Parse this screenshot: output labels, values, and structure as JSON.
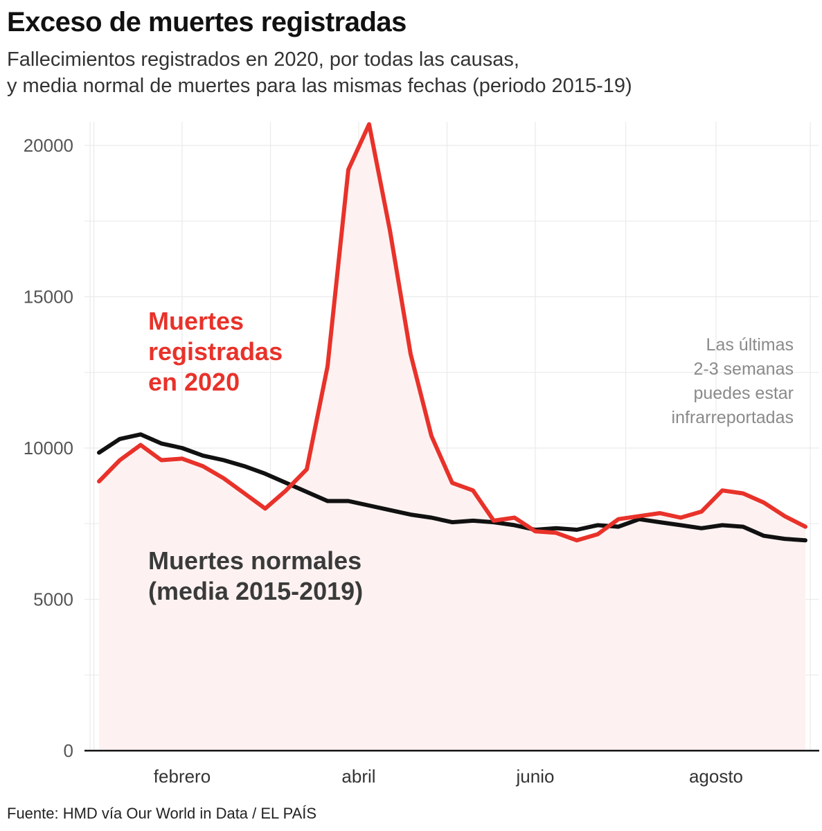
{
  "chart_data": {
    "type": "line",
    "title": "Exceso de muertes registradas",
    "subtitle": [
      "Fallecimientos registrados en 2020, por todas las causas,",
      "y media normal de muertes para las mismas fechas (periodo 2015-19)"
    ],
    "xlabel": "",
    "ylabel": "",
    "ylim": [
      0,
      20800
    ],
    "yticks": [
      0,
      5000,
      10000,
      15000,
      20000
    ],
    "yticks_labels": [
      "0",
      "5000",
      "10000",
      "15000",
      "20000"
    ],
    "x_week_range": [
      0,
      34
    ],
    "xticks": [
      {
        "label": "febrero",
        "week": 4
      },
      {
        "label": "abril",
        "week": 12.5
      },
      {
        "label": "junio",
        "week": 21
      },
      {
        "label": "agosto",
        "week": 29.7
      }
    ],
    "grid": true,
    "series": [
      {
        "name": "Muertes registradas en 2020",
        "color": "#e8322a",
        "values": [
          8900,
          9600,
          10100,
          9600,
          9650,
          9400,
          9000,
          8500,
          8000,
          8600,
          9300,
          12700,
          19200,
          20700,
          17200,
          13100,
          10400,
          8850,
          8600,
          7600,
          7700,
          7250,
          7200,
          6950,
          7150,
          7650,
          7750,
          7850,
          7700,
          7900,
          8600,
          8500,
          8200,
          7750,
          7400
        ]
      },
      {
        "name": "Muertes normales (media 2015-2019)",
        "color": "#111111",
        "values": [
          9850,
          10300,
          10450,
          10150,
          10000,
          9750,
          9600,
          9400,
          9150,
          8850,
          8550,
          8250,
          8250,
          8100,
          7950,
          7800,
          7700,
          7550,
          7600,
          7550,
          7450,
          7300,
          7350,
          7300,
          7450,
          7400,
          7650,
          7550,
          7450,
          7350,
          7450,
          7400,
          7100,
          7000,
          6950
        ]
      }
    ],
    "annotations": {
      "registradas": [
        "Muertes",
        "registradas",
        "en 2020"
      ],
      "normales": [
        "Muertes normales",
        "(media 2015-2019)"
      ],
      "note": [
        "Las últimas",
        "2-3 semanas",
        "puedes estar",
        "infrarreportadas"
      ]
    }
  },
  "source": "Fuente: HMD vía Our World in Data / EL PAÍS",
  "colors": {
    "accent": "#e8322a",
    "normal": "#111111",
    "fill": "#fdf2f1",
    "grid": "#ebebeb"
  }
}
